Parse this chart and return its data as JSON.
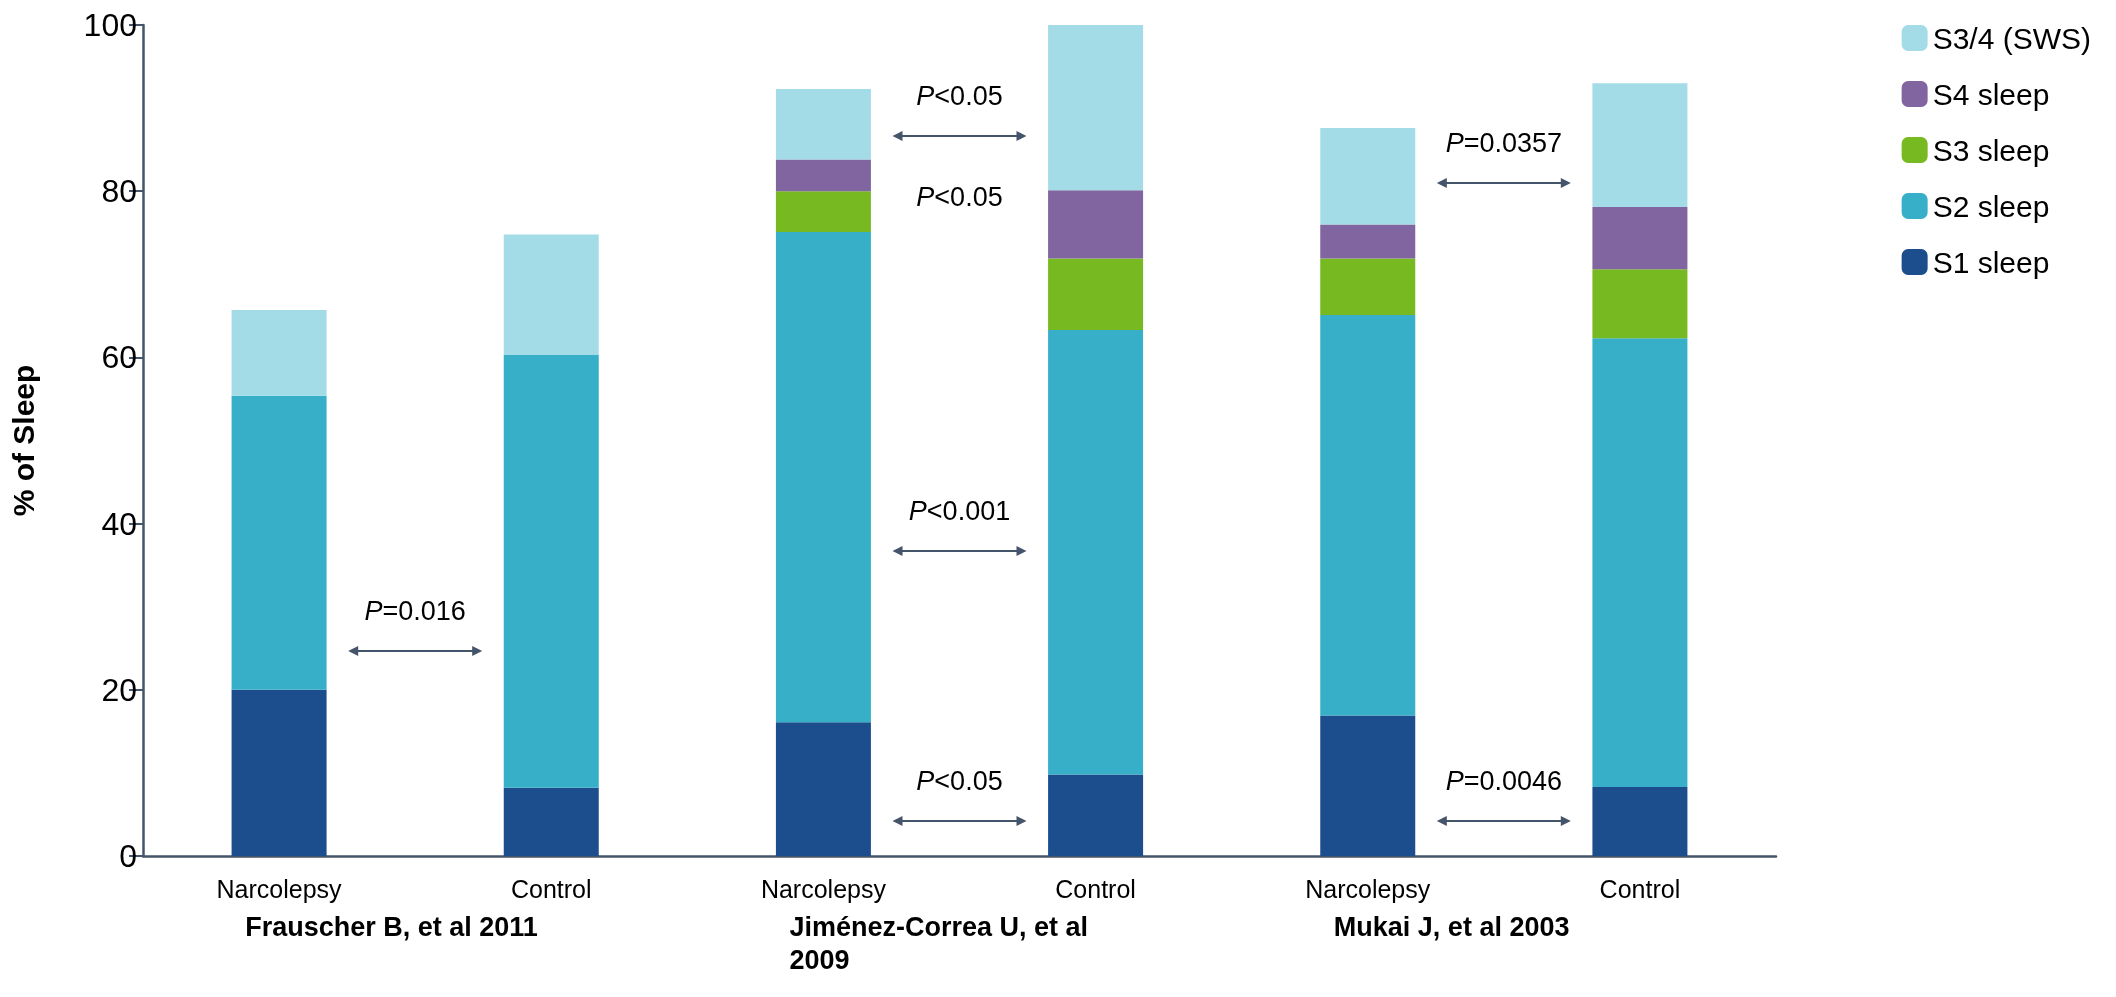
{
  "chart_data": {
    "type": "bar",
    "stacked": true,
    "ylabel": "% of Sleep",
    "categories": [
      "Narcolepsy",
      "Control",
      "Narcolepsy",
      "Control",
      "Narcolepsy",
      "Control"
    ],
    "series": [
      {
        "name": "S1 sleep",
        "color": "#1c4e8e",
        "values": [
          20,
          8.2,
          16.1,
          9.8,
          16.9,
          8.3
        ]
      },
      {
        "name": "S2 sleep",
        "color": "#37afc8",
        "values": [
          35.4,
          52.1,
          59.0,
          53.5,
          48.2,
          54.0
        ]
      },
      {
        "name": "S3 sleep",
        "color": "#76b921",
        "values": [
          null,
          null,
          4.9,
          8.6,
          6.8,
          8.3
        ]
      },
      {
        "name": "S4 sleep",
        "color": "#8165a0",
        "values": [
          null,
          null,
          3.8,
          8.2,
          4.1,
          7.5
        ]
      },
      {
        "name": "S3/4 (SWS)",
        "color": "#a3dce6",
        "values": [
          10.3,
          14.5,
          8.5,
          19.9,
          11.6,
          14.9
        ]
      }
    ],
    "ylim": [
      0,
      100
    ],
    "yticks": [
      0,
      20,
      40,
      60,
      80,
      100
    ],
    "grid": false,
    "legend": "top right",
    "annotations": [
      "Frauscher B, et al 2011",
      "Jiménez-Correa U, et al 2009",
      "Mukai J, et al 2003",
      "P=0.016",
      "P<0.05",
      "P<0.05",
      "P<0.001",
      "P<0.05",
      "P=0.0357",
      "P=0.0046"
    ]
  }
}
